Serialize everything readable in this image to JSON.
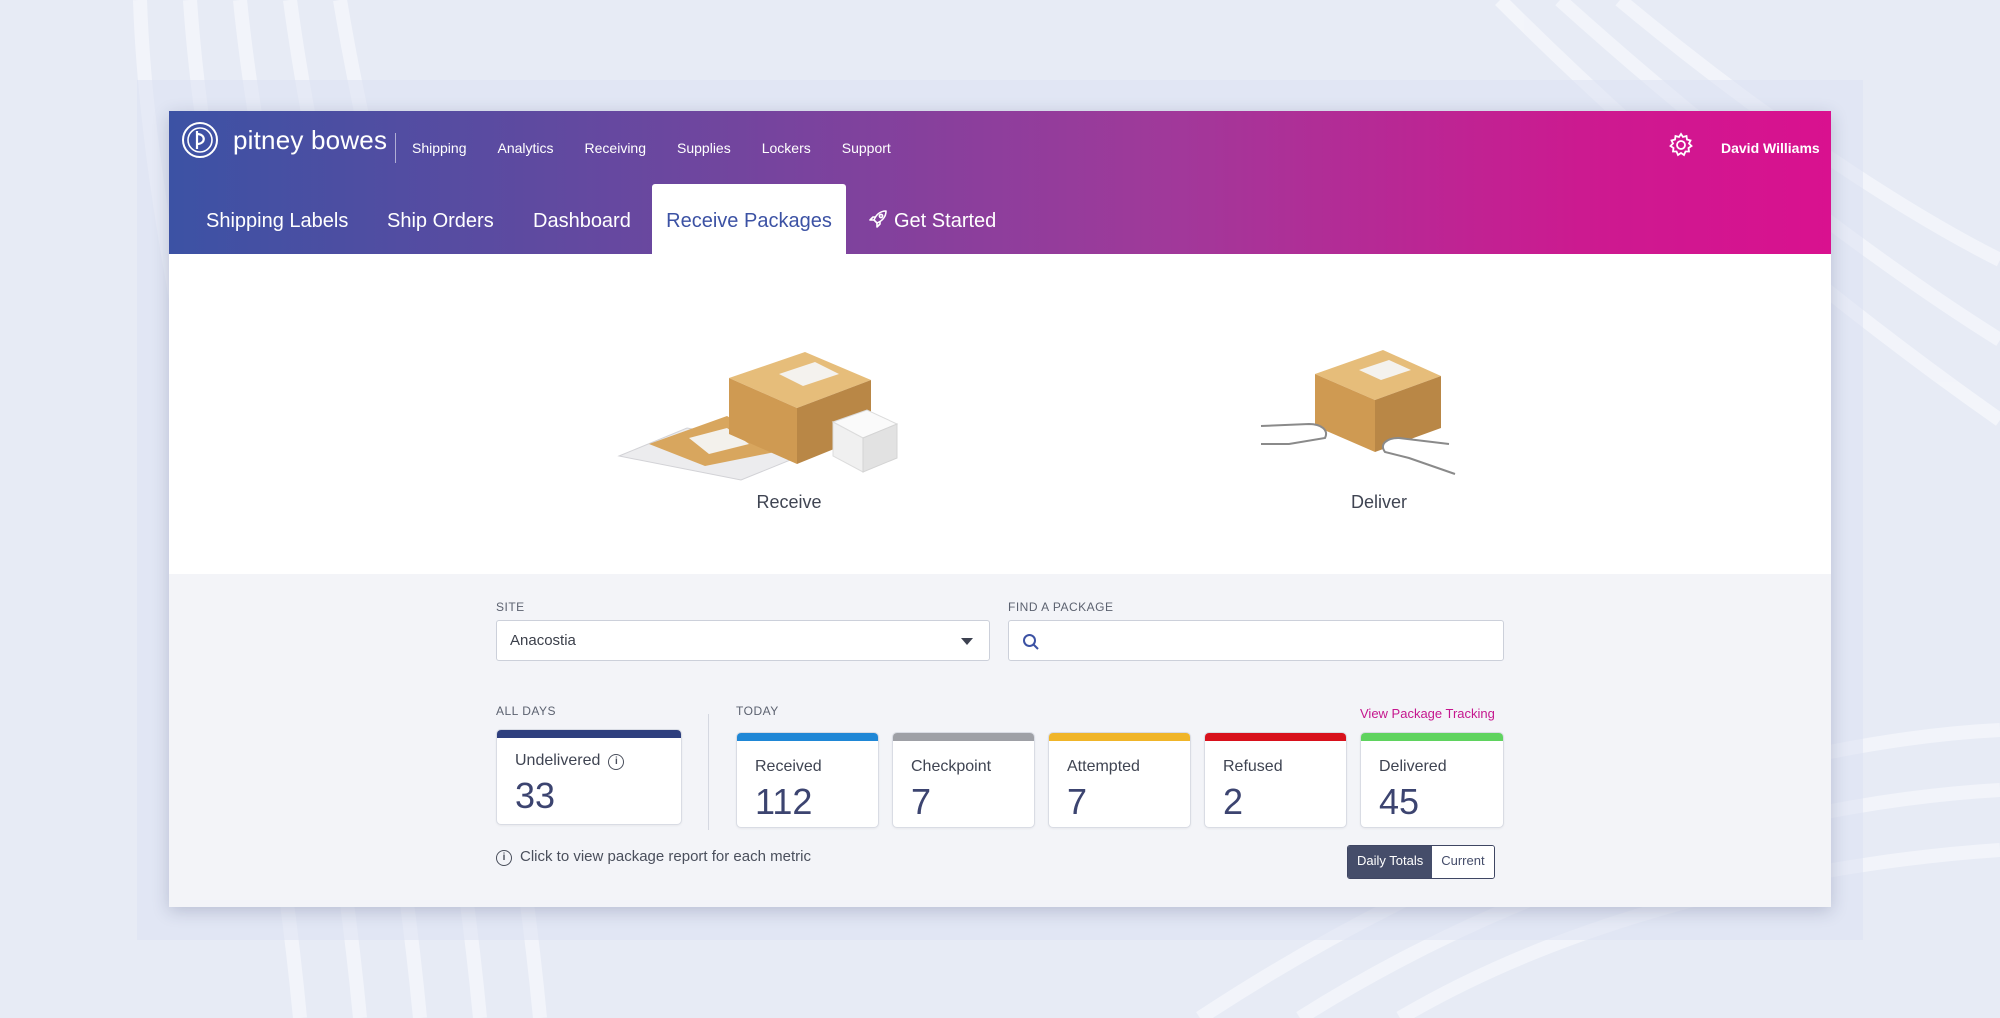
{
  "brand": {
    "name": "pitney bowes"
  },
  "top_nav": [
    "Shipping",
    "Analytics",
    "Receiving",
    "Supplies",
    "Lockers",
    "Support"
  ],
  "user": {
    "name": "David Williams"
  },
  "tabs": [
    "Shipping Labels",
    "Ship Orders",
    "Dashboard",
    "Receive Packages",
    "Get Started"
  ],
  "active_tab": "Receive Packages",
  "hero": {
    "receive": "Receive",
    "deliver": "Deliver"
  },
  "site": {
    "label": "SITE",
    "value": "Anacostia"
  },
  "find": {
    "label": "FIND A PACKAGE",
    "placeholder": ""
  },
  "all_days": {
    "label": "ALL DAYS",
    "card": {
      "title": "Undelivered",
      "value": "33",
      "color": "#2e3f7e"
    }
  },
  "today": {
    "label": "TODAY",
    "cards": [
      {
        "title": "Received",
        "value": "112",
        "color": "#1f87d6"
      },
      {
        "title": "Checkpoint",
        "value": "7",
        "color": "#9ea0a6"
      },
      {
        "title": "Attempted",
        "value": "7",
        "color": "#f0b529"
      },
      {
        "title": "Refused",
        "value": "2",
        "color": "#d8111c"
      },
      {
        "title": "Delivered",
        "value": "45",
        "color": "#5fd35f"
      }
    ]
  },
  "tracking_link": "View Package Tracking",
  "hint": "Click to view package report for each metric",
  "toggle": {
    "daily": "Daily Totals",
    "current": "Current"
  },
  "colors": {
    "accent": "#3c52a4",
    "brand_pink": "#d9118f",
    "link": "#c5168e"
  }
}
